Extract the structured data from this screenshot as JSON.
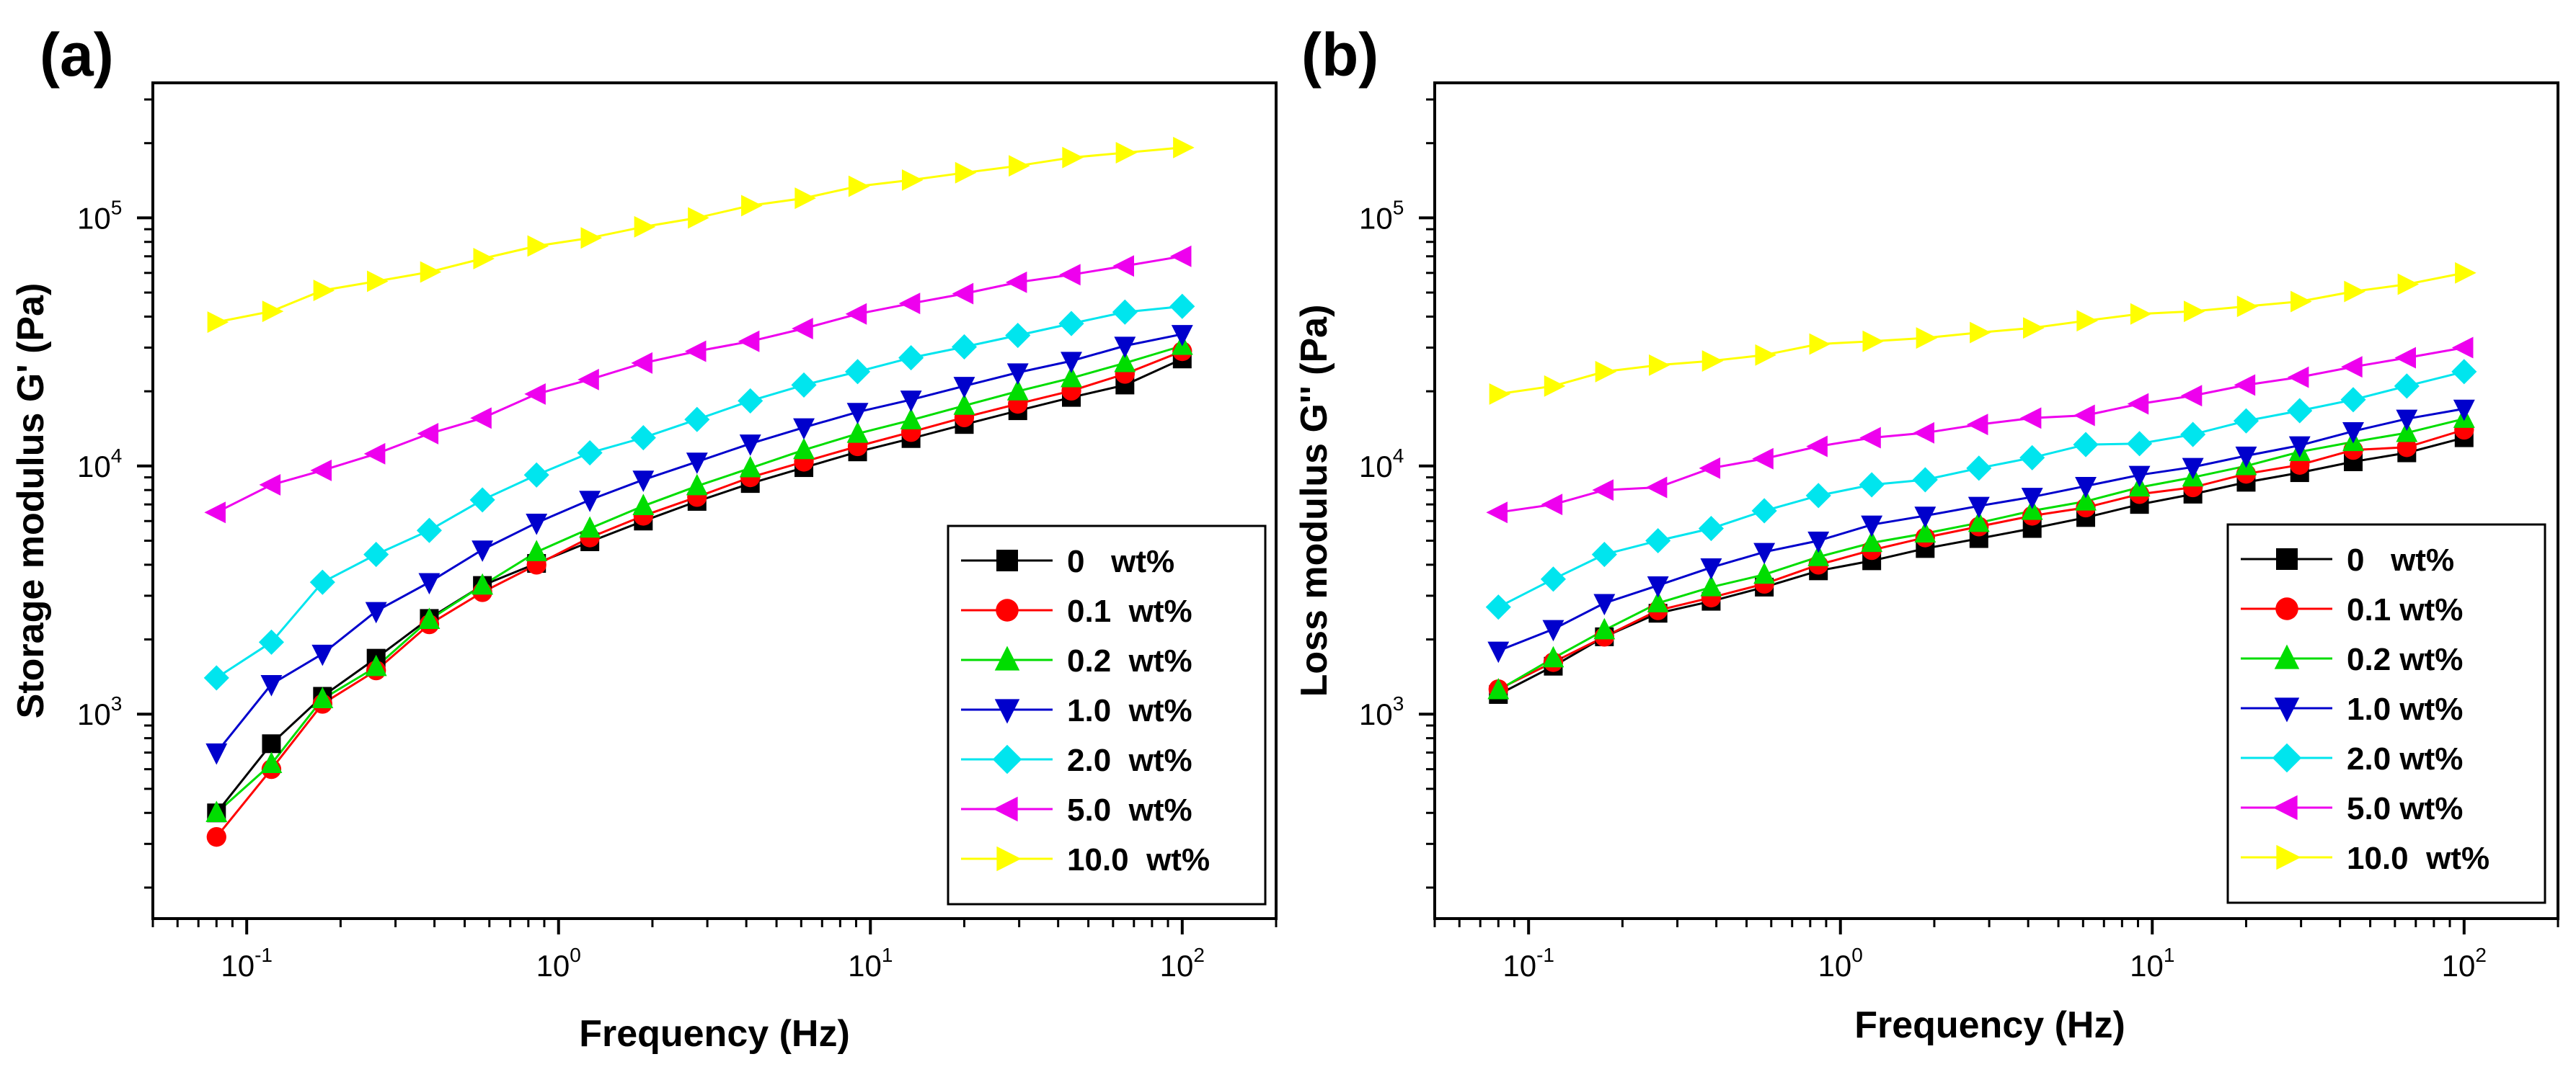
{
  "chart_data": [
    {
      "panel_label": "(a)",
      "type": "line",
      "xscale": "log",
      "yscale": "log",
      "xlabel": "Frequency (Hz)",
      "ylabel": "Storage modulus G' (Pa)",
      "xlim": [
        0.05,
        200
      ],
      "ylim": [
        150,
        350000
      ],
      "xticks": [
        {
          "base": "10",
          "exp": "-1"
        },
        {
          "base": "10",
          "exp": "0"
        },
        {
          "base": "10",
          "exp": "1"
        },
        {
          "base": "10",
          "exp": "2"
        }
      ],
      "yticks": [
        {
          "base": "10",
          "exp": "3"
        },
        {
          "base": "10",
          "exp": "4"
        },
        {
          "base": "10",
          "exp": "5"
        }
      ],
      "grid": false,
      "legend_position": "bottom-right",
      "x": [
        0.08,
        0.12,
        0.175,
        0.26,
        0.385,
        0.57,
        0.85,
        1.26,
        1.87,
        2.78,
        4.12,
        6.12,
        9.1,
        13.5,
        20.0,
        29.7,
        44.1,
        65.5,
        100
      ],
      "series": [
        {
          "name": "0   wt%",
          "color": "#000000",
          "marker": "square",
          "values": [
            400,
            760,
            1180,
            1680,
            2430,
            3300,
            4050,
            4950,
            6000,
            7200,
            8500,
            9850,
            11400,
            12900,
            14700,
            16700,
            18900,
            21200,
            27000
          ]
        },
        {
          "name": "0.1  wt%",
          "color": "#ff0000",
          "marker": "circle",
          "values": [
            320,
            600,
            1100,
            1500,
            2300,
            3100,
            4000,
            5150,
            6300,
            7500,
            9000,
            10400,
            12000,
            13700,
            15700,
            17800,
            20100,
            23500,
            29000
          ]
        },
        {
          "name": "0.2  wt%",
          "color": "#00dd00",
          "marker": "triangle-up",
          "values": [
            400,
            630,
            1150,
            1550,
            2400,
            3300,
            4500,
            5600,
            6900,
            8300,
            9800,
            11600,
            13500,
            15300,
            17500,
            20000,
            22600,
            26000,
            30500
          ]
        },
        {
          "name": "1.0  wt%",
          "color": "#0000cc",
          "marker": "triangle-down",
          "values": [
            700,
            1320,
            1750,
            2600,
            3400,
            4600,
            5900,
            7300,
            8800,
            10400,
            12300,
            14300,
            16500,
            18500,
            21000,
            23800,
            26500,
            30500,
            34000
          ]
        },
        {
          "name": "2.0  wt%",
          "color": "#00e5ee",
          "marker": "diamond",
          "values": [
            1400,
            1950,
            3400,
            4400,
            5500,
            7300,
            9200,
            11300,
            13000,
            15400,
            18300,
            21200,
            24000,
            27300,
            30200,
            33600,
            37500,
            41700,
            44000
          ]
        },
        {
          "name": "5.0  wt%",
          "color": "#ee00ee",
          "marker": "triangle-left",
          "values": [
            6500,
            8400,
            9600,
            11200,
            13500,
            15600,
            19500,
            22300,
            26000,
            29000,
            31800,
            35800,
            41000,
            45200,
            49500,
            55000,
            59000,
            64000,
            70000
          ]
        },
        {
          "name": "10.0  wt%",
          "color": "#ffff00",
          "marker": "triangle-right",
          "values": [
            38000,
            42000,
            51000,
            55500,
            60500,
            68500,
            77000,
            83000,
            92000,
            100000,
            112000,
            120000,
            134000,
            142000,
            152000,
            162000,
            175000,
            183000,
            192000
          ]
        }
      ]
    },
    {
      "panel_label": "(b)",
      "type": "line",
      "xscale": "log",
      "yscale": "log",
      "xlabel": "Frequency (Hz)",
      "ylabel": "Loss modulus G'' (Pa)",
      "xlim": [
        0.05,
        200
      ],
      "ylim": [
        150,
        350000
      ],
      "xticks": [
        {
          "base": "10",
          "exp": "-1"
        },
        {
          "base": "10",
          "exp": "0"
        },
        {
          "base": "10",
          "exp": "1"
        },
        {
          "base": "10",
          "exp": "2"
        }
      ],
      "yticks": [
        {
          "base": "10",
          "exp": "3"
        },
        {
          "base": "10",
          "exp": "4"
        },
        {
          "base": "10",
          "exp": "5"
        }
      ],
      "grid": false,
      "legend_position": "bottom-right",
      "x": [
        0.08,
        0.12,
        0.175,
        0.26,
        0.385,
        0.57,
        0.85,
        1.26,
        1.87,
        2.78,
        4.12,
        6.12,
        9.1,
        13.5,
        20.0,
        29.7,
        44.1,
        65.5,
        100
      ],
      "series": [
        {
          "name": "0   wt%",
          "color": "#000000",
          "marker": "square",
          "values": [
            1200,
            1560,
            2050,
            2550,
            2850,
            3250,
            3780,
            4150,
            4650,
            5100,
            5600,
            6200,
            7000,
            7700,
            8600,
            9400,
            10400,
            11300,
            13000
          ]
        },
        {
          "name": "0.1 wt%",
          "color": "#ff0000",
          "marker": "circle",
          "values": [
            1260,
            1620,
            2050,
            2620,
            2950,
            3350,
            4000,
            4580,
            5150,
            5700,
            6300,
            6800,
            7700,
            8200,
            9300,
            10100,
            11600,
            11900,
            14000
          ]
        },
        {
          "name": "0.2 wt%",
          "color": "#00dd00",
          "marker": "triangle-up",
          "values": [
            1250,
            1680,
            2180,
            2800,
            3250,
            3650,
            4300,
            4900,
            5350,
            5900,
            6600,
            7200,
            8200,
            9000,
            10000,
            11400,
            12500,
            13600,
            15500
          ]
        },
        {
          "name": "1.0 wt%",
          "color": "#0000cc",
          "marker": "triangle-down",
          "values": [
            1800,
            2200,
            2800,
            3300,
            3900,
            4500,
            5000,
            5800,
            6300,
            6900,
            7500,
            8300,
            9200,
            9900,
            11000,
            12100,
            13800,
            15500,
            17000
          ]
        },
        {
          "name": "2.0 wt%",
          "color": "#00e5ee",
          "marker": "diamond",
          "values": [
            2700,
            3500,
            4400,
            5000,
            5600,
            6600,
            7600,
            8400,
            8800,
            9800,
            10800,
            12200,
            12300,
            13400,
            15200,
            16700,
            18500,
            21000,
            24000
          ]
        },
        {
          "name": "5.0 wt%",
          "color": "#ee00ee",
          "marker": "triangle-left",
          "values": [
            6500,
            7000,
            8000,
            8200,
            9800,
            10700,
            12000,
            13000,
            13600,
            14700,
            15600,
            16000,
            17800,
            19200,
            21200,
            22800,
            25100,
            27300,
            30000
          ]
        },
        {
          "name": "10.0  wt%",
          "color": "#ffff00",
          "marker": "triangle-right",
          "values": [
            19500,
            21000,
            24000,
            25500,
            26500,
            28000,
            31000,
            31800,
            32800,
            34500,
            36000,
            38500,
            41000,
            42000,
            44000,
            46000,
            50500,
            54000,
            60000
          ]
        }
      ]
    }
  ]
}
